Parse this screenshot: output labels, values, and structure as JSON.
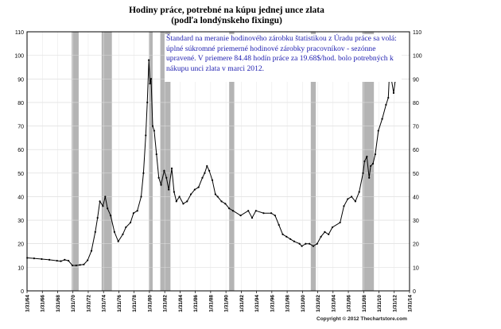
{
  "chart_data": {
    "type": "line",
    "title": "Hodiny práce, potrebné na kúpu jednej unce zlata",
    "subtitle": "(podľa londýnskeho fixingu)",
    "annotation": "Štandard na meranie hodinového zárobku štatistikou z Úradu práce sa volá: úplné súkromné priemerné hodinové zárobky pracovníkov - sezónne upravené. V priemere 84.48 hodín práce za 19.68$/hod. bolo potrebných k nákupu unci zlata v marci 2012.",
    "copyright": "Copyright © 2012 Thechartstore.com",
    "xlabel": "",
    "ylabel": "",
    "x_ticks": [
      "1/31/64",
      "1/31/66",
      "1/31/68",
      "1/31/70",
      "1/31/72",
      "1/31/74",
      "1/31/76",
      "1/31/78",
      "1/31/80",
      "1/31/82",
      "1/31/84",
      "1/31/86",
      "1/31/88",
      "1/31/90",
      "1/31/92",
      "1/31/94",
      "1/31/96",
      "1/31/98",
      "1/31/00",
      "1/31/02",
      "1/31/04",
      "1/31/06",
      "1/31/08",
      "1/31/10",
      "1/31/12",
      "1/31/14"
    ],
    "y_ticks": [
      0,
      10,
      20,
      30,
      40,
      50,
      60,
      70,
      80,
      90,
      100,
      110
    ],
    "xlim": [
      1964.08,
      2014.08
    ],
    "ylim": [
      0,
      110
    ],
    "grid": true,
    "recessions": [
      [
        1969.92,
        1970.83
      ],
      [
        1973.83,
        1975.17
      ],
      [
        1980.0,
        1980.5
      ],
      [
        1981.5,
        1982.83
      ],
      [
        1990.5,
        1991.17
      ],
      [
        2001.17,
        2001.83
      ],
      [
        2007.92,
        2009.42
      ]
    ],
    "series": [
      {
        "x": [
          1964.1,
          1965,
          1966,
          1967,
          1968,
          1968.5,
          1969,
          1969.5,
          1970,
          1970.5,
          1971,
          1971.5,
          1972,
          1972.5,
          1973,
          1973.3,
          1973.6,
          1974,
          1974.3,
          1974.6,
          1975,
          1975.5,
          1976,
          1976.6,
          1977,
          1977.6,
          1978,
          1978.5,
          1979,
          1979.3,
          1979.6,
          1979.8,
          1980,
          1980.15,
          1980.3,
          1980.5,
          1980.7,
          1981,
          1981.3,
          1981.6,
          1982,
          1982.3,
          1982.6,
          1983,
          1983.3,
          1983.6,
          1984,
          1984.5,
          1985,
          1985.5,
          1986,
          1986.5,
          1987,
          1987.3,
          1987.6,
          1987.9,
          1988.3,
          1988.7,
          1989,
          1989.5,
          1990,
          1990.5,
          1991,
          1992,
          1993,
          1993.5,
          1994,
          1995,
          1996,
          1996.5,
          1997,
          1997.5,
          1998,
          1998.5,
          1999,
          1999.7,
          2000,
          2000.5,
          2001,
          2001.5,
          2002,
          2002.5,
          2003,
          2003.5,
          2004,
          2005,
          2005.5,
          2006,
          2006.5,
          2007,
          2007.5,
          2008,
          2008.2,
          2008.5,
          2008.8,
          2009,
          2009.3,
          2009.6,
          2010,
          2010.5,
          2011,
          2011.3,
          2011.5,
          2011.7,
          2012,
          2012.2
        ],
        "values": [
          14,
          13.8,
          13.5,
          13.2,
          12.8,
          12.6,
          13.2,
          12.8,
          10.8,
          10.8,
          11,
          11.2,
          13,
          17,
          25,
          31,
          38,
          36,
          40,
          35,
          32,
          25,
          21,
          24,
          27,
          29,
          33,
          34,
          40,
          50,
          66,
          80,
          98,
          88,
          90,
          70,
          68,
          58,
          48,
          45,
          51,
          48,
          43,
          52,
          42,
          38,
          40,
          37,
          38,
          41,
          43,
          44,
          48,
          50,
          53,
          51,
          47,
          41,
          40,
          38,
          37,
          35,
          34,
          32,
          34,
          31,
          34,
          33,
          33,
          32,
          28,
          24,
          23,
          22,
          21,
          20,
          19,
          20,
          20,
          19,
          20,
          23,
          25,
          24,
          27,
          29,
          36,
          39,
          40,
          38,
          42,
          50,
          55,
          57,
          48,
          53,
          54,
          58,
          68,
          73,
          79,
          82,
          96,
          90,
          84,
          89
        ]
      }
    ]
  }
}
